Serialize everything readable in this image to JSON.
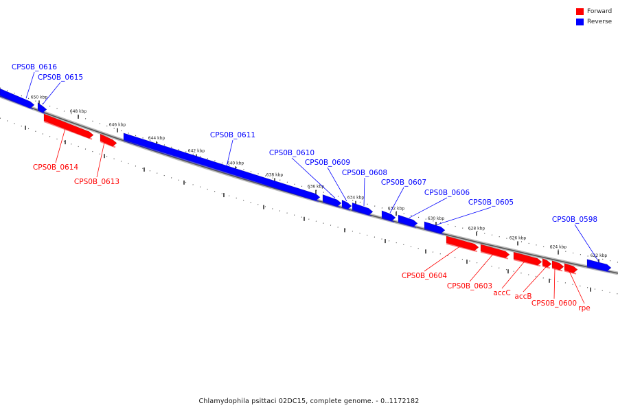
{
  "legend": {
    "forward_label": "Forward",
    "reverse_label": "Reverse",
    "forward_color": "#ff0000",
    "reverse_color": "#0000ff"
  },
  "caption": "Chlamydophila psittaci 02DC15, complete genome. - 0..1172182",
  "scale_labels": [
    "650 kbp",
    "648 kbp",
    "646 kbp",
    "644 kbp",
    "642 kbp",
    "640 kbp",
    "638 kbp",
    "636 kbp",
    "634 kbp",
    "632 kbp",
    "630 kbp",
    "628 kbp",
    "626 kbp",
    "624 kbp",
    "622 kbp"
  ],
  "genes": [
    {
      "name": "CPS0B_0616",
      "strand": "reverse"
    },
    {
      "name": "CPS0B_0615",
      "strand": "reverse"
    },
    {
      "name": "CPS0B_0614",
      "strand": "forward"
    },
    {
      "name": "CPS0B_0613",
      "strand": "forward"
    },
    {
      "name": "CPS0B_0611",
      "strand": "reverse"
    },
    {
      "name": "CPS0B_0610",
      "strand": "reverse"
    },
    {
      "name": "CPS0B_0609",
      "strand": "reverse"
    },
    {
      "name": "CPS0B_0608",
      "strand": "reverse"
    },
    {
      "name": "CPS0B_0607",
      "strand": "reverse"
    },
    {
      "name": "CPS0B_0606",
      "strand": "reverse"
    },
    {
      "name": "CPS0B_0605",
      "strand": "reverse"
    },
    {
      "name": "CPS0B_0604",
      "strand": "forward"
    },
    {
      "name": "CPS0B_0603",
      "strand": "forward"
    },
    {
      "name": "accC",
      "strand": "forward"
    },
    {
      "name": "accB",
      "strand": "forward"
    },
    {
      "name": "CPS0B_0600",
      "strand": "forward"
    },
    {
      "name": "rpe",
      "strand": "forward"
    },
    {
      "name": "CPS0B_0598",
      "strand": "reverse"
    }
  ]
}
